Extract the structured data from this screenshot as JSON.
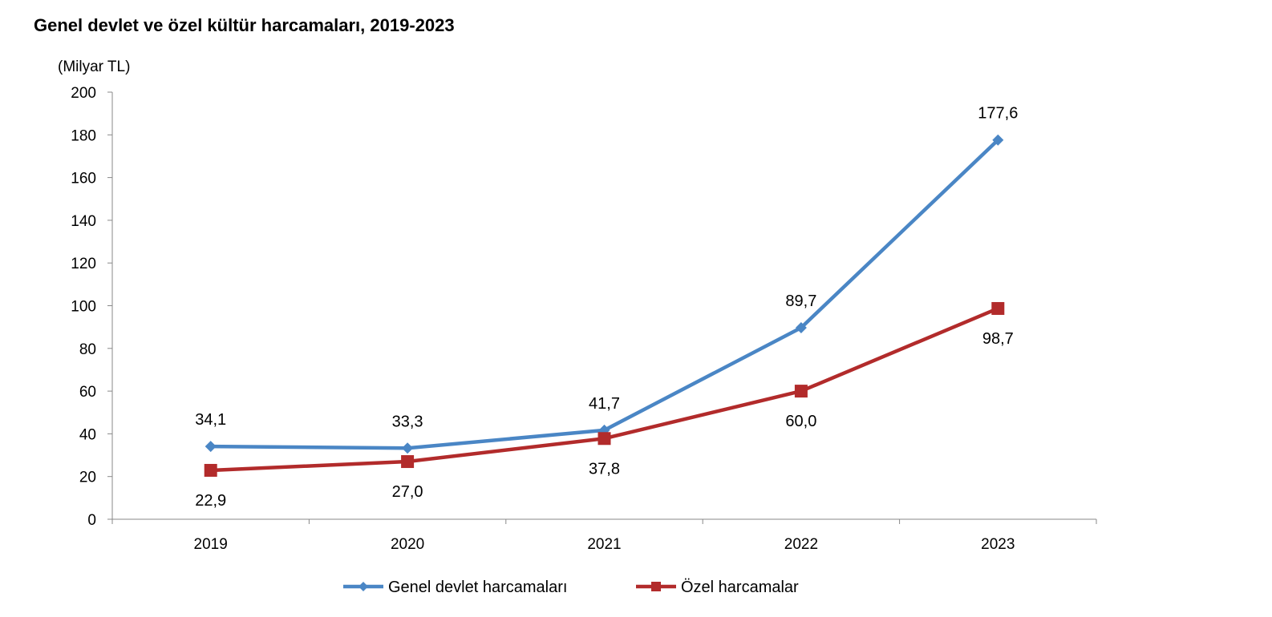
{
  "chart_data": {
    "type": "line",
    "title": "Genel devlet ve özel kültür harcamaları, 2019-2023",
    "unit_label": "(Milyar TL)",
    "categories": [
      "2019",
      "2020",
      "2021",
      "2022",
      "2023"
    ],
    "ylim": [
      0,
      200
    ],
    "yticks": [
      0,
      20,
      40,
      60,
      80,
      100,
      120,
      140,
      160,
      180,
      200
    ],
    "grid": false,
    "legend_position": "bottom",
    "series": [
      {
        "name": "Genel devlet harcamaları",
        "values": [
          34.1,
          33.3,
          41.7,
          89.7,
          177.6
        ],
        "labels": [
          "34,1",
          "33,3",
          "41,7",
          "89,7",
          "177,6"
        ],
        "color": "#4a86c5",
        "marker": "diamond",
        "label_position": "above"
      },
      {
        "name": "Özel harcamalar",
        "values": [
          22.9,
          27.0,
          37.8,
          60.0,
          98.7
        ],
        "labels": [
          "22,9",
          "27,0",
          "37,8",
          "60,0",
          "98,7"
        ],
        "color": "#b22b2b",
        "marker": "square",
        "label_position": "below"
      }
    ]
  }
}
